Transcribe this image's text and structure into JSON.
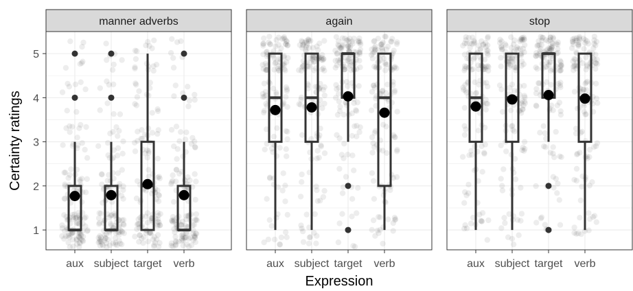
{
  "chart_data": {
    "type": "boxplot",
    "xlabel": "Expression",
    "ylabel": "Certainty ratings",
    "ylim": [
      0.55,
      5.5
    ],
    "y_ticks": [
      1,
      2,
      3,
      4,
      5
    ],
    "categories": [
      "aux",
      "subject",
      "target",
      "verb"
    ],
    "points_jittered": true,
    "colors": {
      "box": "#333333",
      "point": "#000000",
      "strip_fill": "#d9d9d9",
      "grid": "#ebebeb"
    },
    "panels": [
      {
        "name": "manner adverbs",
        "series": [
          {
            "category": "aux",
            "min": 1,
            "q1": 1,
            "median": 1,
            "q3": 2,
            "max": 3,
            "mean": 1.77,
            "outliers": [
              4,
              5
            ]
          },
          {
            "category": "subject",
            "min": 1,
            "q1": 1,
            "median": 1,
            "q3": 2,
            "max": 3,
            "mean": 1.79,
            "outliers": [
              4,
              5
            ]
          },
          {
            "category": "target",
            "min": 1,
            "q1": 1,
            "median": 2,
            "q3": 3,
            "max": 5,
            "mean": 2.04,
            "outliers": []
          },
          {
            "category": "verb",
            "min": 1,
            "q1": 1,
            "median": 1,
            "q3": 2,
            "max": 3,
            "mean": 1.79,
            "outliers": [
              4,
              5
            ]
          }
        ]
      },
      {
        "name": "again",
        "series": [
          {
            "category": "aux",
            "min": 1,
            "q1": 3,
            "median": 4,
            "q3": 5,
            "max": 5,
            "mean": 3.72,
            "outliers": []
          },
          {
            "category": "subject",
            "min": 1,
            "q1": 3,
            "median": 4,
            "q3": 5,
            "max": 5,
            "mean": 3.78,
            "outliers": []
          },
          {
            "category": "target",
            "min": 3,
            "q1": 4,
            "median": 5,
            "q3": 5,
            "max": 5,
            "mean": 4.03,
            "outliers": [
              1,
              2
            ]
          },
          {
            "category": "verb",
            "min": 1,
            "q1": 2,
            "median": 4,
            "q3": 5,
            "max": 5,
            "mean": 3.66,
            "outliers": []
          }
        ]
      },
      {
        "name": "stop",
        "series": [
          {
            "category": "aux",
            "min": 1,
            "q1": 3,
            "median": 4,
            "q3": 5,
            "max": 5,
            "mean": 3.8,
            "outliers": []
          },
          {
            "category": "subject",
            "min": 1,
            "q1": 3,
            "median": 4,
            "q3": 5,
            "max": 5,
            "mean": 3.96,
            "outliers": []
          },
          {
            "category": "target",
            "min": 3,
            "q1": 4,
            "median": 5,
            "q3": 5,
            "max": 5,
            "mean": 4.06,
            "outliers": [
              1,
              2
            ]
          },
          {
            "category": "verb",
            "min": 1,
            "q1": 3,
            "median": 4,
            "q3": 5,
            "max": 5,
            "mean": 3.98,
            "outliers": []
          }
        ]
      }
    ]
  }
}
